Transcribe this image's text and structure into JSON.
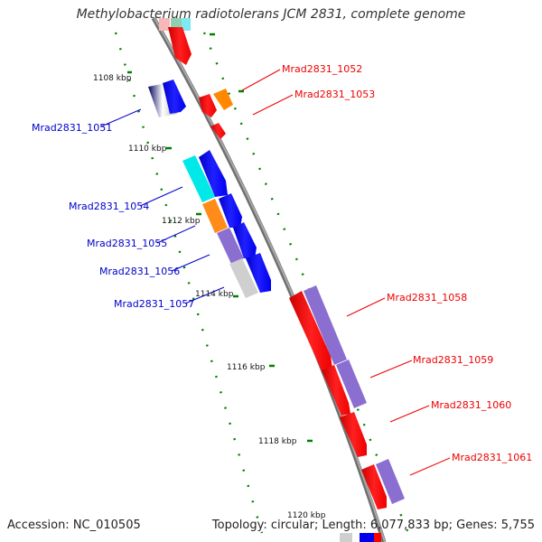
{
  "title": "Methylobacterium radiotolerans JCM 2831, complete genome",
  "footer": {
    "accession": "Accession: NC_010505",
    "topology": "Topology: circular; Length: 6,077,833 bp; Genes: 5,755"
  },
  "colors": {
    "forward": "#ff0000",
    "reverse": "#0000ff",
    "backbone": "#808080",
    "tick": "#008000"
  },
  "ruler": [
    {
      "label": "1108 kbp"
    },
    {
      "label": "1110 kbp"
    },
    {
      "label": "1112 kbp"
    },
    {
      "label": "1114 kbp"
    },
    {
      "label": "1116 kbp"
    },
    {
      "label": "1118 kbp"
    },
    {
      "label": "1120 kbp"
    }
  ],
  "genes": [
    {
      "id": "Mrad2831_1051",
      "strand": "reverse"
    },
    {
      "id": "Mrad2831_1052",
      "strand": "forward"
    },
    {
      "id": "Mrad2831_1053",
      "strand": "forward"
    },
    {
      "id": "Mrad2831_1054",
      "strand": "reverse"
    },
    {
      "id": "Mrad2831_1055",
      "strand": "reverse"
    },
    {
      "id": "Mrad2831_1056",
      "strand": "reverse"
    },
    {
      "id": "Mrad2831_1057",
      "strand": "reverse"
    },
    {
      "id": "Mrad2831_1058",
      "strand": "forward"
    },
    {
      "id": "Mrad2831_1059",
      "strand": "forward"
    },
    {
      "id": "Mrad2831_1060",
      "strand": "forward"
    },
    {
      "id": "Mrad2831_1061",
      "strand": "forward"
    }
  ]
}
